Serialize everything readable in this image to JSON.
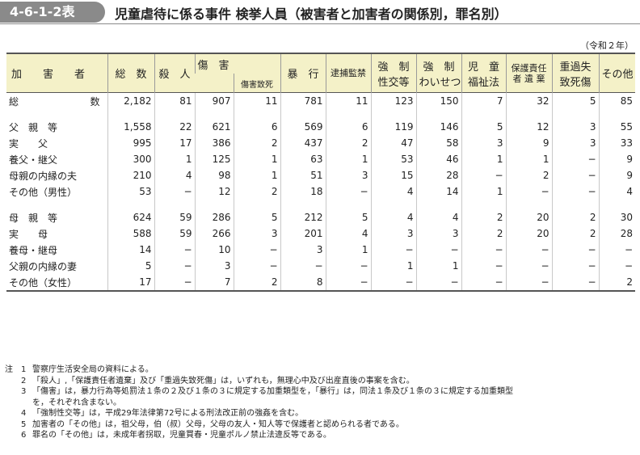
{
  "header": {
    "table_id": "4-6-1-2表",
    "title": "児童虐待に係る事件 検挙人員（被害者と加害者の関係別，罪名別）"
  },
  "era_note": "（令和２年）",
  "columns": {
    "offender": "加　　害　　者",
    "total": "総　数",
    "homicide": "殺　人",
    "injury": "傷　害",
    "injury_death": "傷害致死",
    "assault": "暴　行",
    "confinement": "逮捕監禁",
    "rape_1": "強　制",
    "rape_2": "性交等",
    "indecent_1": "強　制",
    "indecent_2": "わいせつ",
    "child_1": "児　童",
    "child_2": "福祉法",
    "neglect_1": "保護責任",
    "neglect_2": "者 遺 棄",
    "negligent_1": "重過失",
    "negligent_2": "致死傷",
    "other": "その他"
  },
  "rows": [
    {
      "label_a": "総",
      "label_b": "数",
      "level": 0,
      "values": [
        "2,182",
        "81",
        "907",
        "11",
        "781",
        "11",
        "123",
        "150",
        "7",
        "32",
        "5",
        "85"
      ]
    },
    {
      "spacer": true
    },
    {
      "label": "父　親　等",
      "level": 1,
      "values": [
        "1,558",
        "22",
        "621",
        "6",
        "569",
        "6",
        "119",
        "146",
        "5",
        "12",
        "3",
        "55"
      ]
    },
    {
      "label": "実　　父",
      "level": 2,
      "values": [
        "995",
        "17",
        "386",
        "2",
        "437",
        "2",
        "47",
        "58",
        "3",
        "9",
        "3",
        "33"
      ]
    },
    {
      "label": "養父・継父",
      "level": 2,
      "values": [
        "300",
        "1",
        "125",
        "1",
        "63",
        "1",
        "53",
        "46",
        "1",
        "1",
        "−",
        "9"
      ]
    },
    {
      "label": "母親の内縁の夫",
      "level": 2,
      "values": [
        "210",
        "4",
        "98",
        "1",
        "51",
        "3",
        "15",
        "28",
        "−",
        "2",
        "−",
        "9"
      ]
    },
    {
      "label": "その他（男性）",
      "level": 2,
      "values": [
        "53",
        "−",
        "12",
        "2",
        "18",
        "−",
        "4",
        "14",
        "1",
        "−",
        "−",
        "4"
      ]
    },
    {
      "spacer": true
    },
    {
      "label": "母　親　等",
      "level": 1,
      "values": [
        "624",
        "59",
        "286",
        "5",
        "212",
        "5",
        "4",
        "4",
        "2",
        "20",
        "2",
        "30"
      ]
    },
    {
      "label": "実　　母",
      "level": 2,
      "values": [
        "588",
        "59",
        "266",
        "3",
        "201",
        "4",
        "3",
        "3",
        "2",
        "20",
        "2",
        "28"
      ]
    },
    {
      "label": "養母・継母",
      "level": 2,
      "values": [
        "14",
        "−",
        "10",
        "−",
        "3",
        "1",
        "−",
        "−",
        "−",
        "−",
        "−",
        "−"
      ]
    },
    {
      "label": "父親の内縁の妻",
      "level": 2,
      "values": [
        "5",
        "−",
        "3",
        "−",
        "−",
        "−",
        "1",
        "1",
        "−",
        "−",
        "−",
        "−"
      ]
    },
    {
      "label": "その他（女性）",
      "level": 2,
      "values": [
        "17",
        "−",
        "7",
        "2",
        "8",
        "−",
        "−",
        "−",
        "−",
        "−",
        "−",
        "2"
      ]
    }
  ],
  "notes": {
    "mark": "注",
    "items": [
      {
        "no": "1",
        "text": "警察庁生活安全局の資料による。"
      },
      {
        "no": "2",
        "text": "「殺人」,「保護責任者遺棄」及び「重過失致死傷」は，いずれも，無理心中及び出産直後の事案を含む。"
      },
      {
        "no": "3",
        "text": "「傷害」は，暴力行為等処罰法１条の２及び１条の３に規定する加重類型を，「暴行」は，同法１条及び１条の３に規定する加重類型",
        "cont": "を，それぞれ含まない。"
      },
      {
        "no": "4",
        "text": "「強制性交等」は，平成29年法律第72号による刑法改正前の強姦を含む。"
      },
      {
        "no": "5",
        "text": "加害者の「その他」は，祖父母，伯（叔）父母，父母の友人・知人等で保護者と認められる者である。"
      },
      {
        "no": "6",
        "text": "罪名の「その他」は，未成年者拐取，児童買春・児童ポルノ禁止法違反等である。"
      }
    ]
  }
}
